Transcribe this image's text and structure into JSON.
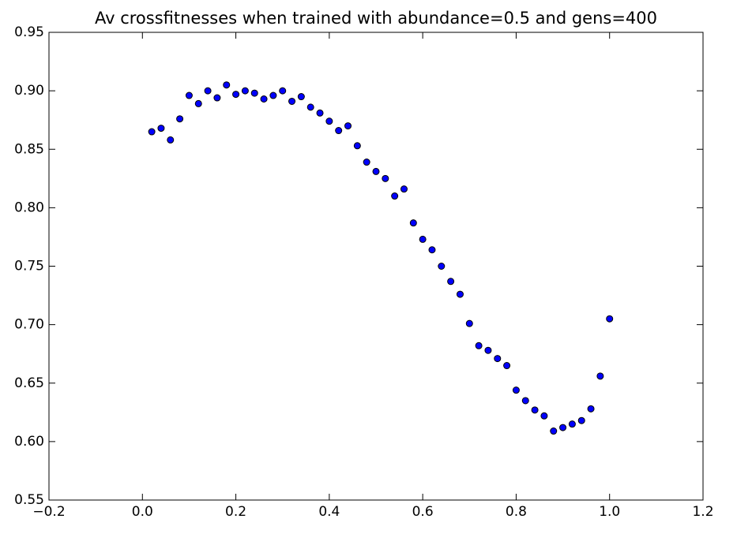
{
  "chart_data": {
    "type": "scatter",
    "title": "Av crossfitnesses when trained with abundance=0.5 and gens=400",
    "x": [
      0.02,
      0.04,
      0.06,
      0.08,
      0.1,
      0.12,
      0.14,
      0.16,
      0.18,
      0.2,
      0.22,
      0.24,
      0.26,
      0.28,
      0.3,
      0.32,
      0.34,
      0.36,
      0.38,
      0.4,
      0.42,
      0.44,
      0.46,
      0.48,
      0.5,
      0.52,
      0.54,
      0.56,
      0.58,
      0.6,
      0.62,
      0.64,
      0.66,
      0.68,
      0.7,
      0.72,
      0.74,
      0.76,
      0.78,
      0.8,
      0.82,
      0.84,
      0.86,
      0.88,
      0.9,
      0.92,
      0.94,
      0.96,
      0.98,
      1.0
    ],
    "values": [
      0.865,
      0.868,
      0.858,
      0.876,
      0.896,
      0.889,
      0.9,
      0.894,
      0.905,
      0.897,
      0.9,
      0.898,
      0.893,
      0.896,
      0.9,
      0.891,
      0.895,
      0.886,
      0.881,
      0.874,
      0.866,
      0.87,
      0.853,
      0.839,
      0.831,
      0.825,
      0.81,
      0.816,
      0.787,
      0.773,
      0.764,
      0.75,
      0.737,
      0.726,
      0.701,
      0.682,
      0.678,
      0.671,
      0.665,
      0.644,
      0.635,
      0.627,
      0.622,
      0.609,
      0.612,
      0.615,
      0.618,
      0.628,
      0.656,
      0.705
    ],
    "color": "#0000ff",
    "xlim": [
      -0.2,
      1.2
    ],
    "xticks": [
      {
        "value": -0.2,
        "label": "−0.2"
      },
      {
        "value": 0,
        "label": "0.0"
      },
      0.2,
      0.4,
      0.6,
      0.8,
      {
        "value": 1,
        "label": "1.0"
      },
      1.2
    ],
    "ylim": [
      0.55,
      0.95
    ],
    "yticks": [
      0.55,
      {
        "value": 0.6,
        "label": "0.60"
      },
      0.65,
      {
        "value": 0.7,
        "label": "0.70"
      },
      0.75,
      {
        "value": 0.8,
        "label": "0.80"
      },
      0.85,
      {
        "value": 0.9,
        "label": "0.90"
      },
      0.95
    ]
  }
}
